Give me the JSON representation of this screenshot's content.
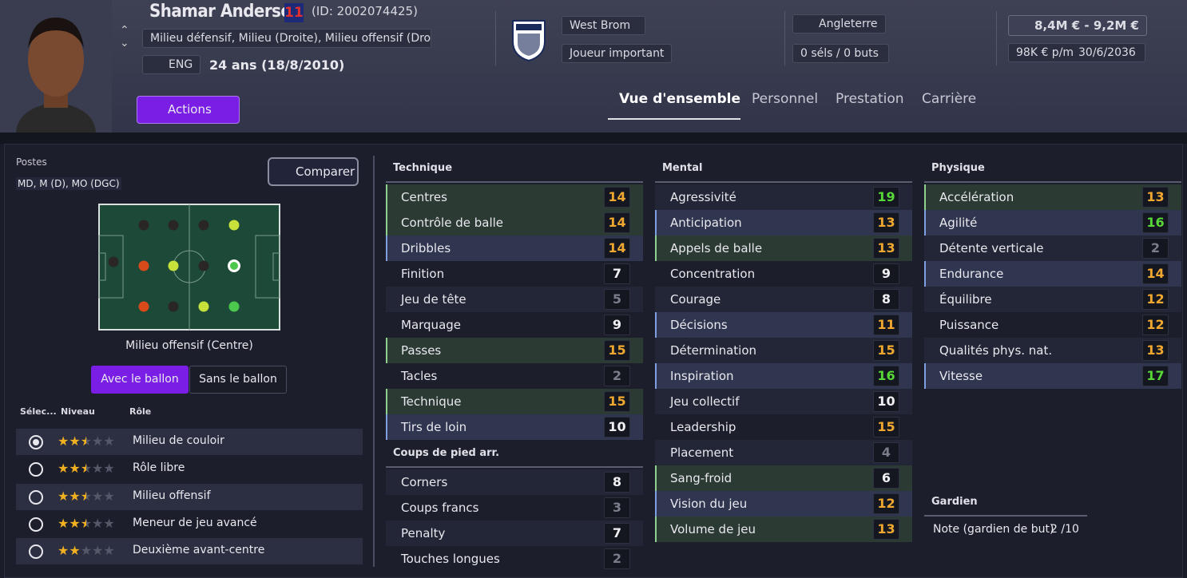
{
  "header": {
    "name": "Shamar Anderson",
    "shirt_number": "11",
    "player_id": "(ID: 2002074425)",
    "positions": "Milieu défensif, Milieu (Droite), Milieu offensif (Droi...",
    "nationality": "ENG",
    "age": "24 ans (18/8/2010)",
    "actions": "Actions",
    "club": "West Brom",
    "squad_status": "Joueur important",
    "country": "Angleterre",
    "caps": "0 séls / 0 buts",
    "value": "8,4M € - 9,2M €",
    "wage": "98K € p/m",
    "contract_end": "30/6/2036"
  },
  "tabs": [
    "Vue d'ensemble",
    "Personnel",
    "Prestation",
    "Carrière"
  ],
  "active_tab": 0,
  "positions_panel": {
    "label": "Postes",
    "positions": "MD, M (D), MO (DGC)",
    "compare": "Comparer",
    "selected_position": "Milieu offensif (Centre)",
    "toggle": [
      "Avec le ballon",
      "Sans le ballon"
    ],
    "columns": [
      "Sélec...",
      "Niveau",
      "Rôle"
    ],
    "roles": [
      {
        "name": "Milieu de couloir",
        "stars": 2.5,
        "selected": true
      },
      {
        "name": "Rôle libre",
        "stars": 2.5
      },
      {
        "name": "Milieu offensif",
        "stars": 2.5
      },
      {
        "name": "Meneur de jeu avancé",
        "stars": 2.5
      },
      {
        "name": "Deuxième avant-centre",
        "stars": 2
      }
    ]
  },
  "attributes": {
    "groups": [
      {
        "title": "Technique",
        "rows": [
          {
            "name": "Centres",
            "value": 14,
            "accent": "#8fd18f"
          },
          {
            "name": "Contrôle de balle",
            "value": 14,
            "accent": "#8fd18f"
          },
          {
            "name": "Dribbles",
            "value": 14,
            "accent": "#7f9fe0"
          },
          {
            "name": "Finition",
            "value": 7
          },
          {
            "name": "Jeu de tête",
            "value": 5
          },
          {
            "name": "Marquage",
            "value": 9
          },
          {
            "name": "Passes",
            "value": 15,
            "accent": "#8fd18f"
          },
          {
            "name": "Tacles",
            "value": 2
          },
          {
            "name": "Technique",
            "value": 15,
            "accent": "#8fd18f"
          },
          {
            "name": "Tirs de loin",
            "value": 10,
            "accent": "#7f9fe0"
          }
        ]
      },
      {
        "title": "Coups de pied arr.",
        "rows": [
          {
            "name": "Corners",
            "value": 8
          },
          {
            "name": "Coups francs",
            "value": 3
          },
          {
            "name": "Penalty",
            "value": 7
          },
          {
            "name": "Touches longues",
            "value": 2
          }
        ]
      },
      {
        "title": "Mental",
        "rows": [
          {
            "name": "Agressivité",
            "value": 19
          },
          {
            "name": "Anticipation",
            "value": 13,
            "accent": "#7f9fe0"
          },
          {
            "name": "Appels de balle",
            "value": 13,
            "accent": "#8fd18f"
          },
          {
            "name": "Concentration",
            "value": 9
          },
          {
            "name": "Courage",
            "value": 8
          },
          {
            "name": "Décisions",
            "value": 11,
            "accent": "#7f9fe0"
          },
          {
            "name": "Détermination",
            "value": 15
          },
          {
            "name": "Inspiration",
            "value": 16,
            "accent": "#7f9fe0"
          },
          {
            "name": "Jeu collectif",
            "value": 10
          },
          {
            "name": "Leadership",
            "value": 15
          },
          {
            "name": "Placement",
            "value": 4
          },
          {
            "name": "Sang-froid",
            "value": 6,
            "accent": "#8fd18f"
          },
          {
            "name": "Vision du jeu",
            "value": 12,
            "accent": "#7f9fe0"
          },
          {
            "name": "Volume de jeu",
            "value": 13,
            "accent": "#8fd18f"
          }
        ]
      },
      {
        "title": "Physique",
        "rows": [
          {
            "name": "Accélération",
            "value": 13,
            "accent": "#8fd18f"
          },
          {
            "name": "Agilité",
            "value": 16,
            "accent": "#7f9fe0"
          },
          {
            "name": "Détente verticale",
            "value": 2
          },
          {
            "name": "Endurance",
            "value": 14,
            "accent": "#7f9fe0"
          },
          {
            "name": "Équilibre",
            "value": 12
          },
          {
            "name": "Puissance",
            "value": 12
          },
          {
            "name": "Qualités phys. nat.",
            "value": 13
          },
          {
            "name": "Vitesse",
            "value": 17,
            "accent": "#7f9fe0"
          }
        ]
      },
      {
        "title": "Gardien",
        "rows": [
          {
            "name": "Note (gardien de but)",
            "value": "2 /10"
          }
        ]
      }
    ]
  }
}
